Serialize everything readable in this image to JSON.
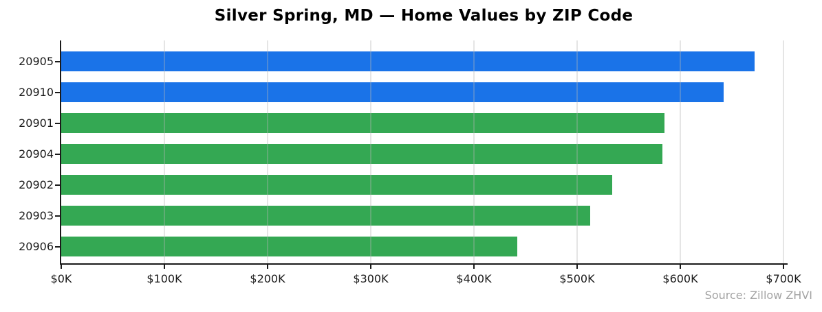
{
  "chart_data": {
    "type": "bar",
    "orientation": "horizontal",
    "title": "Silver Spring, MD — Home Values by ZIP Code",
    "categories": [
      "20905",
      "20910",
      "20901",
      "20904",
      "20902",
      "20903",
      "20906"
    ],
    "values": [
      672,
      642,
      585,
      583,
      534,
      513,
      442
    ],
    "value_unit": "thousand USD",
    "bar_colors": [
      "#1a73e8",
      "#1a73e8",
      "#34a853",
      "#34a853",
      "#34a853",
      "#34a853",
      "#34a853"
    ],
    "xlabel": "",
    "ylabel": "",
    "xlim": [
      0,
      702.7
    ],
    "x_ticks": [
      0,
      100,
      200,
      300,
      400,
      500,
      600,
      700
    ],
    "x_tick_labels": [
      "$0K",
      "$100K",
      "$200K",
      "$300K",
      "$400K",
      "$500K",
      "$600K",
      "$700K"
    ],
    "grid": "vertical-gridlines-over-bars",
    "legend": "none",
    "source": "Source: Zillow ZHVI",
    "colors": {
      "accent_blue": "#1a73e8",
      "accent_green": "#34a853",
      "axis": "#1a1a1a",
      "gridline": "#e5e5e5",
      "source_text": "#a3a3a3",
      "background": "#ffffff"
    }
  }
}
